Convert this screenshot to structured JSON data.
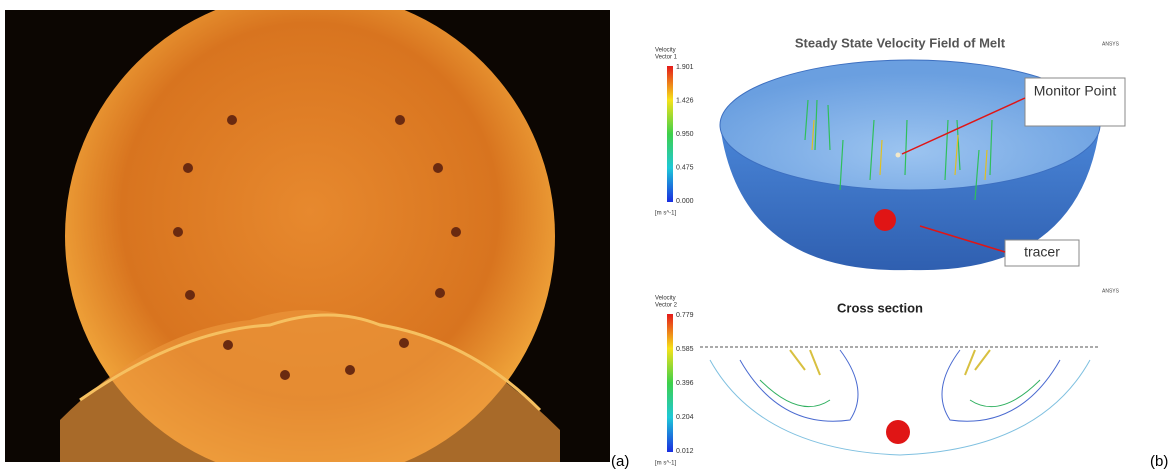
{
  "panel_a": {
    "label": "(a)"
  },
  "panel_b": {
    "label": "(b)",
    "top": {
      "title": "Steady State Velocity Field of Melt",
      "brand": "ANSYS",
      "legend": {
        "title_line1": "Velocity",
        "title_line2": "Vector 1",
        "ticks": [
          "1.901",
          "1.426",
          "0.950",
          "0.475",
          "0.000"
        ],
        "unit": "[m s^-1]"
      },
      "callouts": [
        "Monitor Point",
        "tracer"
      ]
    },
    "bottom": {
      "title": "Cross section",
      "brand": "ANSYS",
      "legend": {
        "title_line1": "Velocity",
        "title_line2": "Vector 2",
        "ticks": [
          "0.779",
          "0.585",
          "0.396",
          "0.204",
          "0.012"
        ],
        "unit": "[m s^-1]"
      }
    }
  }
}
